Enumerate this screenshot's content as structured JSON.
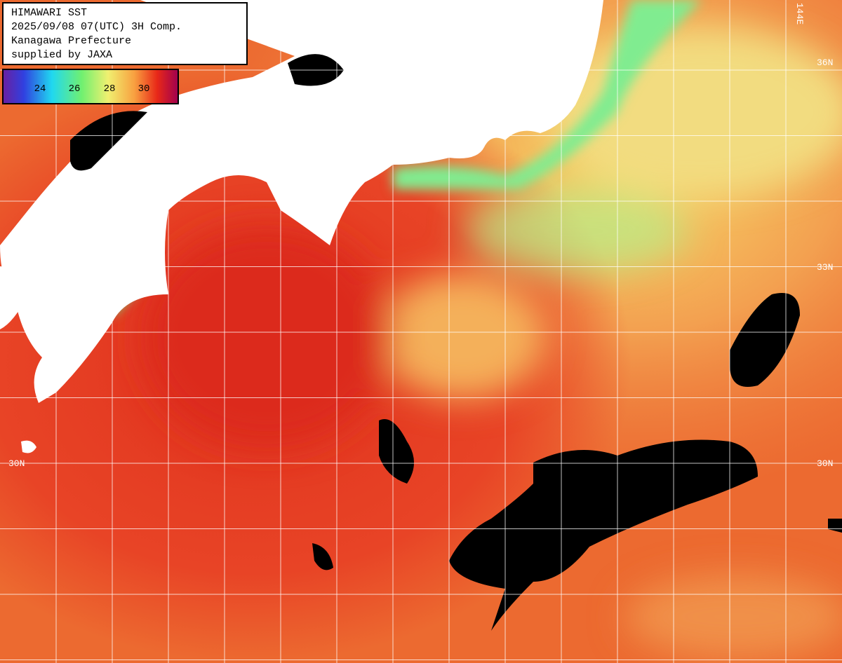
{
  "header": {
    "lines": [
      "HIMAWARI SST",
      "2025/09/08 07(UTC) 3H Comp.",
      "Kanagawa Prefecture",
      "supplied by JAXA"
    ]
  },
  "legend": {
    "ticks": [
      "24",
      "26",
      "28",
      "30"
    ]
  },
  "map": {
    "grid_labels": [
      "144E",
      "36N",
      "33N",
      "30N",
      "30N"
    ]
  }
}
